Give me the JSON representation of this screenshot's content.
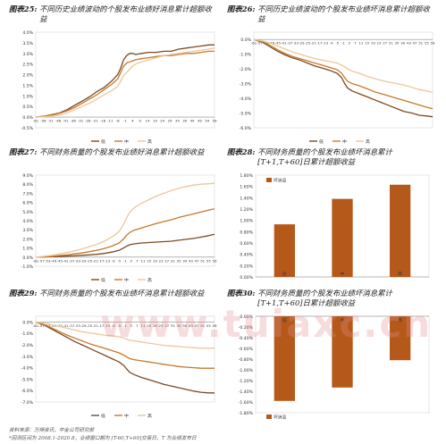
{
  "titles": [
    {
      "label": "图表25:",
      "text": "不同历史业绩波动的个股发布业绩好消息累计超额收益"
    },
    {
      "label": "图表26:",
      "text": "不同历史业绩波动的个股发布业绩坏消息累计超额收益"
    },
    {
      "label": "图表27:",
      "text": "不同财务质量的个股发布业绩好消息累计超额收益"
    },
    {
      "label": "图表28:",
      "text": "不同财务质量的个股发布业绩坏消息累计[T+1,T+60]日累计超额收益"
    },
    {
      "label": "图表29:",
      "text": "不同财务质量的个股发布业绩坏消息累计超额收益"
    },
    {
      "label": "图表30:",
      "text": "不同财务质量的个股发布业绩坏消息累计[T+1,T+60]日累计超额收益"
    }
  ],
  "footer": {
    "source": "资料来源：万得资讯，中金公司研究部",
    "note": "*回测区间为 2008.1-2020.8，业绩窗口期为 [T-60,T+60]交易日，T 为业绩发布日"
  },
  "watermark": "www.tuiaxc.cn",
  "colors": {
    "low": "#7b4a22",
    "mid": "#c8782a",
    "high": "#ebc79a",
    "bar": "#b5591b"
  },
  "chart_data": [
    {
      "id": "c25",
      "type": "line",
      "ylim": [
        -0.5,
        4.0
      ],
      "yticks": [
        -0.5,
        0.0,
        0.5,
        1.0,
        1.5,
        2.0,
        2.5,
        3.0,
        3.5,
        4.0
      ],
      "ytick_labels": [
        "-0.5%",
        "0.0%",
        "0.5%",
        "1.0%",
        "1.5%",
        "2.0%",
        "2.5%",
        "3.0%",
        "3.5%",
        "4.0%"
      ],
      "x_range": [
        -61,
        59
      ],
      "xtick_labels": [
        "-61",
        "-56",
        "-51",
        "-46",
        "-41",
        "-36",
        "-31",
        "-26",
        "-21",
        "-16",
        "-11",
        "-6",
        "-1",
        "4",
        "9",
        "14",
        "19",
        "24",
        "29",
        "34",
        "39",
        "44",
        "49",
        "54",
        "59"
      ],
      "xaxis_at": 0,
      "legend": [
        "低",
        "中",
        "高"
      ],
      "series": [
        {
          "name": "低",
          "x": [
            -61,
            -55,
            -50,
            -45,
            -40,
            -35,
            -30,
            -25,
            -20,
            -15,
            -10,
            -6,
            -4,
            -2,
            0,
            2,
            4,
            6,
            10,
            15,
            20,
            25,
            30,
            35,
            40,
            45,
            50,
            55,
            59
          ],
          "y": [
            0.0,
            0.05,
            0.12,
            0.2,
            0.35,
            0.55,
            0.75,
            0.95,
            1.2,
            1.4,
            1.7,
            2.0,
            2.3,
            2.7,
            2.9,
            3.0,
            3.0,
            2.95,
            3.0,
            3.05,
            3.05,
            3.1,
            3.1,
            3.2,
            3.25,
            3.3,
            3.35,
            3.4,
            3.4
          ]
        },
        {
          "name": "中",
          "x": [
            -61,
            -55,
            -50,
            -45,
            -40,
            -35,
            -30,
            -25,
            -20,
            -15,
            -10,
            -6,
            -4,
            -2,
            0,
            2,
            4,
            6,
            10,
            15,
            20,
            25,
            30,
            35,
            40,
            45,
            50,
            55,
            59
          ],
          "y": [
            0.0,
            0.05,
            0.1,
            0.18,
            0.3,
            0.45,
            0.65,
            0.85,
            1.05,
            1.3,
            1.55,
            1.8,
            2.1,
            2.4,
            2.55,
            2.6,
            2.65,
            2.7,
            2.75,
            2.8,
            2.85,
            2.9,
            2.9,
            2.95,
            3.0,
            3.0,
            3.05,
            3.1,
            3.1
          ]
        },
        {
          "name": "高",
          "x": [
            -61,
            -55,
            -50,
            -45,
            -40,
            -35,
            -30,
            -25,
            -20,
            -15,
            -10,
            -6,
            -4,
            -2,
            0,
            2,
            4,
            6,
            10,
            15,
            20,
            25,
            30,
            35,
            40,
            45,
            50,
            55,
            59
          ],
          "y": [
            0.0,
            0.02,
            0.05,
            0.1,
            0.2,
            0.35,
            0.5,
            0.65,
            0.85,
            1.05,
            1.25,
            1.45,
            1.7,
            1.95,
            2.1,
            2.25,
            2.4,
            2.5,
            2.6,
            2.7,
            2.8,
            2.9,
            2.95,
            3.0,
            3.05,
            3.1,
            3.15,
            3.2,
            3.25
          ]
        }
      ]
    },
    {
      "id": "c26",
      "type": "line",
      "ylim": [
        -6.0,
        0.5
      ],
      "yticks": [
        -6.0,
        -5.0,
        -4.0,
        -3.0,
        -2.0,
        -1.0,
        0.0
      ],
      "ytick_labels": [
        "-6.0%",
        "-5.0%",
        "-4.0%",
        "-3.0%",
        "-2.0%",
        "-1.0%",
        "0.0%"
      ],
      "x_range": [
        -61,
        59
      ],
      "xtick_labels": [
        "-61",
        "-57",
        "-53",
        "-49",
        "-45",
        "-41",
        "-37",
        "-33",
        "-29",
        "-25",
        "-21",
        "-17",
        "-13",
        "-9",
        "-5",
        "-1",
        "3",
        "7",
        "11",
        "15",
        "19",
        "23",
        "27",
        "31",
        "35",
        "39",
        "43",
        "47",
        "51",
        "55",
        "59"
      ],
      "xaxis_at": 0,
      "legend": [
        "低",
        "中",
        "高"
      ],
      "series": [
        {
          "name": "低",
          "x": [
            -61,
            -55,
            -50,
            -45,
            -40,
            -35,
            -30,
            -25,
            -20,
            -15,
            -10,
            -5,
            -2,
            0,
            2,
            5,
            10,
            15,
            20,
            25,
            30,
            35,
            40,
            45,
            50,
            55,
            59
          ],
          "y": [
            0.0,
            -0.2,
            -0.5,
            -0.8,
            -1.05,
            -1.25,
            -1.4,
            -1.6,
            -1.8,
            -1.95,
            -2.1,
            -2.3,
            -2.6,
            -3.0,
            -3.3,
            -3.5,
            -3.7,
            -3.9,
            -4.1,
            -4.3,
            -4.5,
            -4.7,
            -4.9,
            -5.0,
            -5.15,
            -5.2,
            -5.25
          ]
        },
        {
          "name": "中",
          "x": [
            -61,
            -55,
            -50,
            -45,
            -40,
            -35,
            -30,
            -25,
            -20,
            -15,
            -10,
            -5,
            -2,
            0,
            2,
            5,
            10,
            15,
            20,
            25,
            30,
            35,
            40,
            45,
            50,
            55,
            59
          ],
          "y": [
            0.0,
            -0.15,
            -0.4,
            -0.7,
            -0.95,
            -1.15,
            -1.3,
            -1.45,
            -1.6,
            -1.75,
            -1.9,
            -2.05,
            -2.3,
            -2.6,
            -2.85,
            -3.0,
            -3.15,
            -3.35,
            -3.55,
            -3.7,
            -3.85,
            -4.0,
            -4.15,
            -4.3,
            -4.45,
            -4.6,
            -4.7
          ]
        },
        {
          "name": "高",
          "x": [
            -61,
            -55,
            -50,
            -45,
            -40,
            -35,
            -30,
            -25,
            -20,
            -15,
            -10,
            -5,
            -2,
            0,
            2,
            5,
            10,
            15,
            20,
            25,
            30,
            35,
            40,
            45,
            50,
            55,
            59
          ],
          "y": [
            0.0,
            -0.1,
            -0.25,
            -0.45,
            -0.65,
            -0.85,
            -1.0,
            -1.15,
            -1.3,
            -1.4,
            -1.5,
            -1.6,
            -1.75,
            -1.85,
            -2.0,
            -2.15,
            -2.3,
            -2.5,
            -2.65,
            -2.8,
            -2.9,
            -3.0,
            -3.1,
            -3.25,
            -3.4,
            -3.5,
            -3.6
          ]
        }
      ]
    },
    {
      "id": "c27",
      "type": "line",
      "ylim": [
        -1.0,
        9.0
      ],
      "yticks": [
        -1.0,
        0.0,
        1.0,
        2.0,
        3.0,
        4.0,
        5.0,
        6.0,
        7.0,
        8.0,
        9.0
      ],
      "ytick_labels": [
        "-1.0%",
        "0.0%",
        "1.0%",
        "2.0%",
        "3.0%",
        "4.0%",
        "5.0%",
        "6.0%",
        "7.0%",
        "8.0%",
        "9.0%"
      ],
      "x_range": [
        -61,
        59
      ],
      "xtick_labels": [
        "-61",
        "-57",
        "-53",
        "-49",
        "-45",
        "-41",
        "-37",
        "-33",
        "-29",
        "-25",
        "-21",
        "-17",
        "-13",
        "-9",
        "-5",
        "-1",
        "3",
        "7",
        "11",
        "15",
        "19",
        "23",
        "27",
        "31",
        "35",
        "39",
        "43",
        "47",
        "51",
        "55",
        "59"
      ],
      "xaxis_at": 0,
      "legend": [
        "低",
        "中",
        "高"
      ],
      "series": [
        {
          "name": "低",
          "x": [
            -61,
            -55,
            -50,
            -45,
            -40,
            -35,
            -30,
            -25,
            -20,
            -15,
            -10,
            -5,
            -2,
            0,
            2,
            5,
            10,
            15,
            20,
            25,
            30,
            35,
            40,
            45,
            50,
            55,
            59
          ],
          "y": [
            0.0,
            0.02,
            0.05,
            0.08,
            0.12,
            0.15,
            0.2,
            0.25,
            0.3,
            0.4,
            0.55,
            0.75,
            1.0,
            1.2,
            1.35,
            1.45,
            1.55,
            1.6,
            1.65,
            1.7,
            1.75,
            1.85,
            1.95,
            2.05,
            2.2,
            2.35,
            2.5
          ]
        },
        {
          "name": "中",
          "x": [
            -61,
            -55,
            -50,
            -45,
            -40,
            -35,
            -30,
            -25,
            -20,
            -15,
            -10,
            -5,
            -2,
            0,
            2,
            5,
            10,
            15,
            20,
            25,
            30,
            35,
            40,
            45,
            50,
            55,
            59
          ],
          "y": [
            0.0,
            0.05,
            0.1,
            0.18,
            0.25,
            0.35,
            0.45,
            0.6,
            0.75,
            0.95,
            1.2,
            1.55,
            2.0,
            2.4,
            2.7,
            2.95,
            3.2,
            3.45,
            3.7,
            3.9,
            4.1,
            4.35,
            4.55,
            4.75,
            4.95,
            5.15,
            5.3
          ]
        },
        {
          "name": "高",
          "x": [
            -61,
            -55,
            -50,
            -45,
            -40,
            -35,
            -30,
            -25,
            -20,
            -15,
            -10,
            -5,
            -2,
            0,
            2,
            5,
            10,
            15,
            20,
            25,
            30,
            35,
            40,
            45,
            50,
            55,
            59
          ],
          "y": [
            0.0,
            0.1,
            0.2,
            0.35,
            0.5,
            0.7,
            0.9,
            1.15,
            1.4,
            1.75,
            2.2,
            2.8,
            3.6,
            4.3,
            4.9,
            5.4,
            5.9,
            6.3,
            6.7,
            7.0,
            7.3,
            7.55,
            7.75,
            7.9,
            8.0,
            8.05,
            8.1
          ]
        }
      ]
    },
    {
      "id": "c28",
      "type": "bar",
      "ylim": [
        0.0,
        1.8
      ],
      "yticks": [
        0.0,
        0.2,
        0.4,
        0.6,
        0.8,
        1.0,
        1.2,
        1.4,
        1.6,
        1.8
      ],
      "ytick_labels": [
        "0.00%",
        "0.20%",
        "0.40%",
        "0.60%",
        "0.80%",
        "1.00%",
        "1.20%",
        "1.40%",
        "1.60%",
        "1.80%"
      ],
      "legend": [
        "坏消息"
      ],
      "categories": [
        "低",
        "中",
        "高"
      ],
      "values": [
        0.93,
        1.38,
        1.63
      ]
    },
    {
      "id": "c29",
      "type": "line",
      "ylim": [
        -7.0,
        0.5
      ],
      "yticks": [
        -7.0,
        -6.0,
        -5.0,
        -4.0,
        -3.0,
        -2.0,
        -1.0,
        0.0
      ],
      "ytick_labels": [
        "-7.0%",
        "-6.0%",
        "-5.0%",
        "-4.0%",
        "-3.0%",
        "-2.0%",
        "-1.0%",
        "0.0%"
      ],
      "x_range": [
        -61,
        59
      ],
      "xtick_labels": [
        "-61",
        "-57",
        "-53",
        "-49",
        "-45",
        "-41",
        "-37",
        "-33",
        "-29",
        "-25",
        "-21",
        "-17",
        "-13",
        "-9",
        "-5",
        "-1",
        "3",
        "7",
        "11",
        "15",
        "19",
        "23",
        "27",
        "31",
        "35",
        "39",
        "43",
        "47",
        "51",
        "55",
        "59"
      ],
      "xaxis_at": 0,
      "legend": [
        "低",
        "中",
        "高"
      ],
      "series": [
        {
          "name": "低",
          "x": [
            -61,
            -55,
            -50,
            -45,
            -40,
            -35,
            -30,
            -25,
            -20,
            -15,
            -10,
            -5,
            -2,
            0,
            2,
            5,
            10,
            15,
            20,
            25,
            30,
            35,
            40,
            45,
            50,
            55,
            59
          ],
          "y": [
            0.0,
            -0.3,
            -0.65,
            -1.0,
            -1.35,
            -1.7,
            -2.0,
            -2.3,
            -2.6,
            -2.9,
            -3.2,
            -3.5,
            -3.8,
            -4.1,
            -4.4,
            -4.6,
            -4.85,
            -5.05,
            -5.25,
            -5.45,
            -5.6,
            -5.75,
            -5.9,
            -6.05,
            -6.15,
            -6.2,
            -6.2
          ]
        },
        {
          "name": "中",
          "x": [
            -61,
            -55,
            -50,
            -45,
            -40,
            -35,
            -30,
            -25,
            -20,
            -15,
            -10,
            -5,
            -2,
            0,
            2,
            5,
            10,
            15,
            20,
            25,
            30,
            35,
            40,
            45,
            50,
            55,
            59
          ],
          "y": [
            0.0,
            -0.25,
            -0.55,
            -0.85,
            -1.15,
            -1.4,
            -1.65,
            -1.9,
            -2.1,
            -2.3,
            -2.5,
            -2.7,
            -2.9,
            -3.05,
            -3.2,
            -3.3,
            -3.4,
            -3.5,
            -3.6,
            -3.7,
            -3.8,
            -3.9,
            -3.95,
            -4.0,
            -4.05,
            -4.05,
            -4.05
          ]
        },
        {
          "name": "高",
          "x": [
            -61,
            -55,
            -50,
            -45,
            -40,
            -35,
            -30,
            -25,
            -20,
            -15,
            -10,
            -5,
            -2,
            0,
            2,
            5,
            10,
            15,
            20,
            25,
            30,
            35,
            40,
            45,
            50,
            55,
            59
          ],
          "y": [
            0.0,
            -0.1,
            -0.25,
            -0.4,
            -0.55,
            -0.7,
            -0.85,
            -0.95,
            -1.05,
            -1.15,
            -1.2,
            -1.3,
            -1.4,
            -1.5,
            -1.6,
            -1.65,
            -1.75,
            -1.85,
            -1.95,
            -2.05,
            -2.1,
            -2.15,
            -2.2,
            -2.25,
            -2.3,
            -2.3,
            -2.3
          ]
        }
      ]
    },
    {
      "id": "c30",
      "type": "bar",
      "ylim": [
        -1.8,
        0.0
      ],
      "yticks": [
        -1.8,
        -1.6,
        -1.4,
        -1.2,
        -1.0,
        -0.8,
        -0.6,
        -0.4,
        -0.2,
        0.0
      ],
      "ytick_labels": [
        "-1.80%",
        "-1.60%",
        "-1.40%",
        "-1.20%",
        "-1.00%",
        "-0.80%",
        "-0.60%",
        "-0.40%",
        "-0.20%",
        "0.00%"
      ],
      "legend": [
        "坏消息"
      ],
      "categories": [
        "低",
        "中",
        "高"
      ],
      "values": [
        -1.58,
        -1.33,
        -0.82
      ]
    }
  ]
}
